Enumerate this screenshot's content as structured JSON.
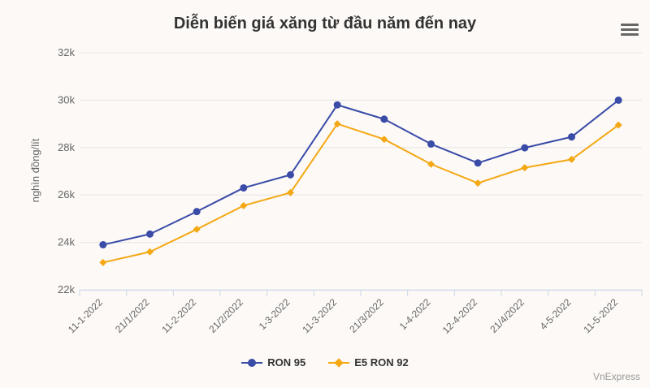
{
  "chart_data": {
    "type": "line",
    "title": "Diễn biến giá xăng từ đầu năm đến nay",
    "ylabel": "nghìn đồng/lít",
    "ylim": [
      22000,
      32000
    ],
    "yticks": [
      {
        "value": 22000,
        "label": "22k"
      },
      {
        "value": 24000,
        "label": "24k"
      },
      {
        "value": 26000,
        "label": "26k"
      },
      {
        "value": 28000,
        "label": "28k"
      },
      {
        "value": 30000,
        "label": "30k"
      },
      {
        "value": 32000,
        "label": "32k"
      }
    ],
    "categories": [
      "11-1-2022",
      "21/1/2022",
      "11-2-2022",
      "21/2/2022",
      "1-3-2022",
      "11-3-2022",
      "21/3/2022",
      "1-4-2022",
      "12-4-2022",
      "21/4/2022",
      "4-5-2022",
      "11-5-2022"
    ],
    "series": [
      {
        "name": "RON 95",
        "color": "#3a4ba8",
        "marker": "circle",
        "values": [
          23900,
          24350,
          25300,
          26300,
          26850,
          29800,
          29200,
          28150,
          27350,
          27990,
          28450,
          30000
        ]
      },
      {
        "name": "E5 RON 92",
        "color": "#f4a814",
        "marker": "diamond",
        "values": [
          23150,
          23600,
          24550,
          25550,
          26100,
          29000,
          28350,
          27300,
          26500,
          27150,
          27500,
          28950
        ]
      }
    ],
    "grid": true,
    "legend": "bottom-center"
  },
  "credit": "VnExpress"
}
